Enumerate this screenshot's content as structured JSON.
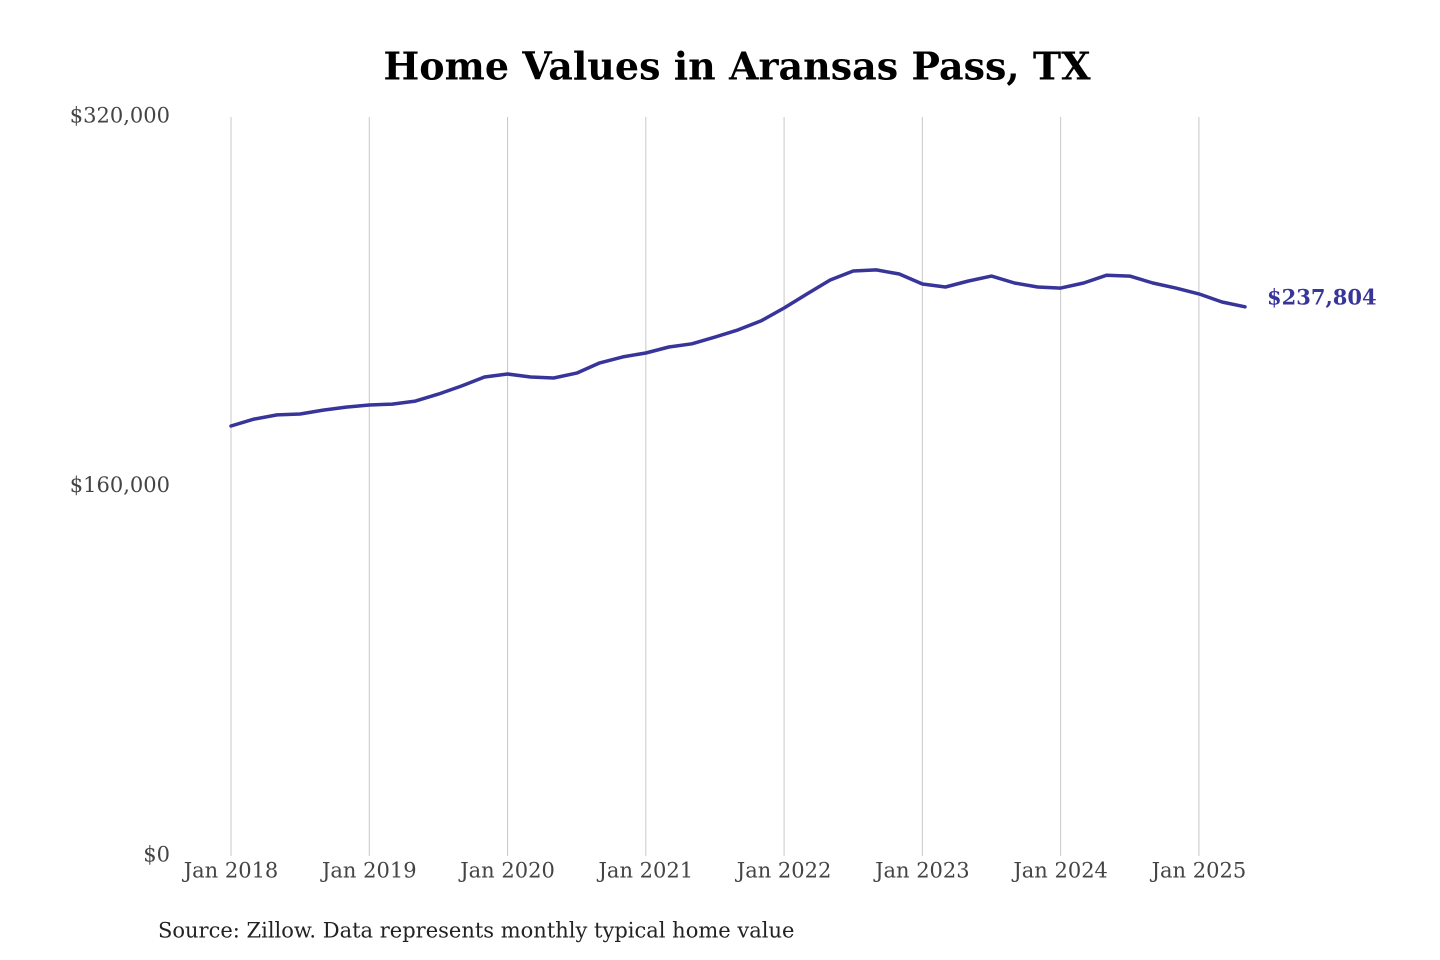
{
  "chart_data": {
    "type": "line",
    "title": "Home Values in Aransas Pass, TX",
    "source": "Source: Zillow. Data represents monthly typical home value",
    "x": [
      "2018-01",
      "2018-03",
      "2018-05",
      "2018-07",
      "2018-09",
      "2018-11",
      "2019-01",
      "2019-03",
      "2019-05",
      "2019-07",
      "2019-09",
      "2019-11",
      "2020-01",
      "2020-03",
      "2020-05",
      "2020-07",
      "2020-09",
      "2020-11",
      "2021-01",
      "2021-03",
      "2021-05",
      "2021-07",
      "2021-09",
      "2021-11",
      "2022-01",
      "2022-03",
      "2022-05",
      "2022-07",
      "2022-09",
      "2022-11",
      "2023-01",
      "2023-03",
      "2023-05",
      "2023-07",
      "2023-09",
      "2023-11",
      "2024-01",
      "2024-03",
      "2024-05",
      "2024-07",
      "2024-09",
      "2024-11",
      "2025-01",
      "2025-03",
      "2025-05"
    ],
    "series": [
      {
        "name": "Typical home value",
        "color": "#38359a",
        "values": [
          186200,
          189200,
          191000,
          191400,
          193100,
          194400,
          195300,
          195700,
          197000,
          200000,
          203500,
          207400,
          208700,
          207400,
          207000,
          209100,
          213500,
          216100,
          217800,
          220400,
          221800,
          224700,
          227800,
          231700,
          237300,
          243400,
          249400,
          253300,
          253800,
          252000,
          247700,
          246400,
          249000,
          251100,
          248100,
          246400,
          245900,
          248100,
          251500,
          251100,
          248100,
          245900,
          243400,
          239900,
          237804
        ],
        "value_labels": [
          null,
          null,
          null,
          null,
          null,
          null,
          null,
          null,
          null,
          null,
          null,
          null,
          null,
          null,
          null,
          null,
          null,
          null,
          null,
          null,
          null,
          null,
          null,
          null,
          null,
          null,
          null,
          null,
          null,
          null,
          null,
          null,
          null,
          null,
          null,
          null,
          null,
          null,
          null,
          null,
          null,
          null,
          null,
          null,
          "$237,804"
        ]
      }
    ],
    "xlim": [
      "2018-01",
      "2025-05"
    ],
    "xticks": [
      {
        "value": "2018-01",
        "label": "Jan 2018"
      },
      {
        "value": "2019-01",
        "label": "Jan 2019"
      },
      {
        "value": "2020-01",
        "label": "Jan 2020"
      },
      {
        "value": "2021-01",
        "label": "Jan 2021"
      },
      {
        "value": "2022-01",
        "label": "Jan 2022"
      },
      {
        "value": "2023-01",
        "label": "Jan 2023"
      },
      {
        "value": "2024-01",
        "label": "Jan 2024"
      },
      {
        "value": "2025-01",
        "label": "Jan 2025"
      }
    ],
    "ylim": [
      0,
      320000
    ],
    "yticks": [
      {
        "value": 0,
        "label": "$0"
      },
      {
        "value": 160000,
        "label": "$160,000"
      },
      {
        "value": 320000,
        "label": "$320,000"
      }
    ],
    "grid": "x"
  }
}
